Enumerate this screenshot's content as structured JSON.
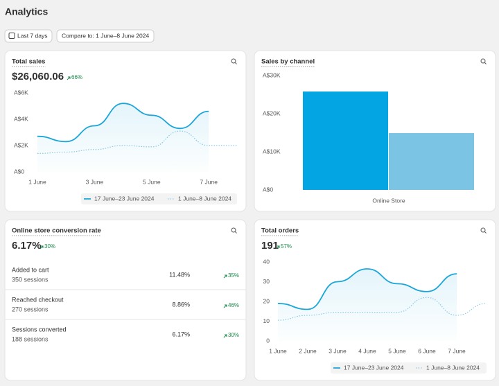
{
  "header": {
    "title": "Analytics"
  },
  "filters": {
    "period": "Last 7 days",
    "compare": "Compare to: 1 June–8 June 2024"
  },
  "chart_data": [
    {
      "type": "line",
      "title": "Total sales",
      "kpi": "$26,060.06",
      "kpi_change": "66%",
      "categories": [
        "1 June",
        null,
        "3 June",
        null,
        "5 June",
        null,
        "7 June",
        null
      ],
      "series": [
        {
          "name": "17 June–23 June 2024",
          "color": "#1aa6d9",
          "style": "solid",
          "values": [
            2700,
            2300,
            3500,
            5200,
            4300,
            3300,
            4600,
            null
          ]
        },
        {
          "name": "1 June–8 June 2024",
          "color": "#8ccbe6",
          "style": "dotted",
          "values": [
            1400,
            1500,
            1700,
            2000,
            1900,
            3100,
            2000,
            2000
          ]
        }
      ],
      "ylim": [
        0,
        6000
      ],
      "yticks": [
        {
          "value": 0,
          "label": "A$0"
        },
        {
          "value": 2000,
          "label": "A$2K"
        },
        {
          "value": 4000,
          "label": "A$4K"
        },
        {
          "value": 6000,
          "label": "A$6K"
        }
      ],
      "grid": false
    },
    {
      "type": "bar",
      "title": "Sales by channel",
      "categories": [
        "Online Store"
      ],
      "series": [
        {
          "color": "#03a6e2",
          "values": [
            25800
          ]
        },
        {
          "color": "#7cc4e4",
          "values": [
            14900
          ]
        }
      ],
      "ylim": [
        0,
        30000
      ],
      "yticks": [
        {
          "value": 0,
          "label": "A$0"
        },
        {
          "value": 10000,
          "label": "A$10K"
        },
        {
          "value": 20000,
          "label": "A$20K"
        },
        {
          "value": 30000,
          "label": "A$30K"
        }
      ],
      "grid": false
    },
    {
      "type": "line",
      "title": "Total orders",
      "kpi": "191",
      "kpi_change": "57%",
      "categories": [
        "1 June",
        "2 June",
        "3 June",
        "4 June",
        "5 June",
        "6 June",
        "7 June",
        null
      ],
      "series": [
        {
          "name": "17 June–23 June 2024",
          "color": "#1aa6d9",
          "style": "solid",
          "values": [
            19,
            16,
            30,
            36.5,
            29,
            25,
            34,
            null
          ]
        },
        {
          "name": "1 June–8 June 2024",
          "color": "#8ccbe6",
          "style": "dotted",
          "values": [
            10.5,
            13,
            14.5,
            14.5,
            14.5,
            22,
            13,
            19
          ]
        }
      ],
      "ylim": [
        0,
        40
      ],
      "yticks": [
        0,
        10,
        20,
        30,
        40
      ],
      "grid": false
    }
  ],
  "conversion": {
    "title": "Online store conversion rate",
    "value": "6.17%",
    "change": "30%",
    "rows": [
      {
        "label": "Added to cart",
        "sessions": "350 sessions",
        "rate": "11.48%",
        "change": "35%"
      },
      {
        "label": "Reached checkout",
        "sessions": "270 sessions",
        "rate": "8.86%",
        "change": "46%"
      },
      {
        "label": "Sessions converted",
        "sessions": "188 sessions",
        "rate": "6.17%",
        "change": "30%"
      }
    ]
  }
}
